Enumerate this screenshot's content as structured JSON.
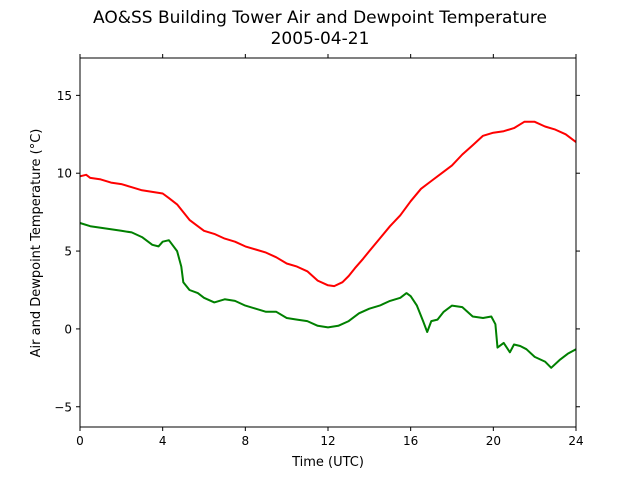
{
  "chart_data": {
    "type": "line",
    "title": "AO&SS Building Tower Air and Dewpoint Temperature",
    "subtitle": "2005-04-21",
    "xlabel": "Time (UTC)",
    "ylabel": "Air and Dewpoint Temperature (°C)",
    "xlim": [
      0,
      24
    ],
    "ylim": [
      -6.3,
      17.4
    ],
    "xticks": [
      0,
      4,
      8,
      12,
      16,
      20,
      24
    ],
    "yticks": [
      -5,
      0,
      5,
      10,
      15
    ],
    "ytick_labels": [
      "−5",
      "0",
      "5",
      "10",
      "15"
    ],
    "grid": false,
    "series": [
      {
        "color": "#ff0000",
        "points": [
          [
            0,
            9.8
          ],
          [
            0.3,
            9.9
          ],
          [
            0.5,
            9.7
          ],
          [
            1,
            9.6
          ],
          [
            1.5,
            9.4
          ],
          [
            2,
            9.3
          ],
          [
            2.5,
            9.1
          ],
          [
            3,
            8.9
          ],
          [
            3.5,
            8.8
          ],
          [
            4,
            8.7
          ],
          [
            4.3,
            8.4
          ],
          [
            4.7,
            8
          ],
          [
            5,
            7.5
          ],
          [
            5.3,
            7
          ],
          [
            5.7,
            6.6
          ],
          [
            6,
            6.3
          ],
          [
            6.5,
            6.1
          ],
          [
            7,
            5.8
          ],
          [
            7.5,
            5.6
          ],
          [
            8,
            5.3
          ],
          [
            8.5,
            5.1
          ],
          [
            9,
            4.9
          ],
          [
            9.5,
            4.6
          ],
          [
            10,
            4.2
          ],
          [
            10.5,
            4
          ],
          [
            11,
            3.7
          ],
          [
            11.5,
            3.1
          ],
          [
            12,
            2.8
          ],
          [
            12.3,
            2.75
          ],
          [
            12.7,
            3
          ],
          [
            13,
            3.4
          ],
          [
            13.3,
            3.9
          ],
          [
            13.7,
            4.5
          ],
          [
            14,
            5
          ],
          [
            14.5,
            5.8
          ],
          [
            15,
            6.6
          ],
          [
            15.5,
            7.3
          ],
          [
            16,
            8.2
          ],
          [
            16.5,
            9
          ],
          [
            17,
            9.5
          ],
          [
            17.5,
            10
          ],
          [
            18,
            10.5
          ],
          [
            18.5,
            11.2
          ],
          [
            19,
            11.8
          ],
          [
            19.5,
            12.4
          ],
          [
            20,
            12.6
          ],
          [
            20.5,
            12.7
          ],
          [
            21,
            12.9
          ],
          [
            21.5,
            13.3
          ],
          [
            22,
            13.3
          ],
          [
            22.5,
            13
          ],
          [
            23,
            12.8
          ],
          [
            23.5,
            12.5
          ],
          [
            24,
            12
          ]
        ]
      },
      {
        "color": "#008000",
        "points": [
          [
            0,
            6.8
          ],
          [
            0.5,
            6.6
          ],
          [
            1,
            6.5
          ],
          [
            1.5,
            6.4
          ],
          [
            2,
            6.3
          ],
          [
            2.5,
            6.2
          ],
          [
            3,
            5.9
          ],
          [
            3.5,
            5.4
          ],
          [
            3.8,
            5.3
          ],
          [
            4,
            5.6
          ],
          [
            4.3,
            5.7
          ],
          [
            4.7,
            5
          ],
          [
            4.9,
            4
          ],
          [
            5,
            3
          ],
          [
            5.3,
            2.5
          ],
          [
            5.7,
            2.3
          ],
          [
            6,
            2
          ],
          [
            6.5,
            1.7
          ],
          [
            7,
            1.9
          ],
          [
            7.5,
            1.8
          ],
          [
            8,
            1.5
          ],
          [
            8.5,
            1.3
          ],
          [
            9,
            1.1
          ],
          [
            9.5,
            1.1
          ],
          [
            10,
            0.7
          ],
          [
            10.5,
            0.6
          ],
          [
            11,
            0.5
          ],
          [
            11.5,
            0.2
          ],
          [
            12,
            0.1
          ],
          [
            12.5,
            0.2
          ],
          [
            13,
            0.5
          ],
          [
            13.5,
            1
          ],
          [
            14,
            1.3
          ],
          [
            14.5,
            1.5
          ],
          [
            15,
            1.8
          ],
          [
            15.5,
            2
          ],
          [
            15.8,
            2.3
          ],
          [
            16,
            2.1
          ],
          [
            16.3,
            1.5
          ],
          [
            16.6,
            0.5
          ],
          [
            16.8,
            -0.2
          ],
          [
            17,
            0.5
          ],
          [
            17.3,
            0.6
          ],
          [
            17.6,
            1.1
          ],
          [
            18,
            1.5
          ],
          [
            18.5,
            1.4
          ],
          [
            19,
            0.8
          ],
          [
            19.5,
            0.7
          ],
          [
            19.9,
            0.8
          ],
          [
            20.1,
            0.3
          ],
          [
            20.2,
            -1.2
          ],
          [
            20.5,
            -0.9
          ],
          [
            20.8,
            -1.5
          ],
          [
            21,
            -1
          ],
          [
            21.3,
            -1.1
          ],
          [
            21.6,
            -1.3
          ],
          [
            22,
            -1.8
          ],
          [
            22.5,
            -2.1
          ],
          [
            22.8,
            -2.5
          ],
          [
            23.2,
            -2
          ],
          [
            23.6,
            -1.6
          ],
          [
            24,
            -1.3
          ]
        ]
      }
    ]
  }
}
